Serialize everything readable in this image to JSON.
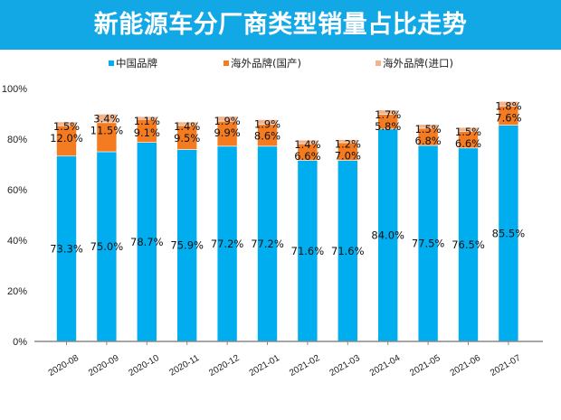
{
  "colors": {
    "banner": "#12a8e6",
    "china": "#00adef",
    "foreign_domestic": "#f47b20",
    "foreign_import": "#f2b48e",
    "axis": "#888888"
  },
  "chart_data": {
    "type": "bar",
    "stacked": true,
    "title": "新能源车分厂商类型销量占比走势",
    "xlabel": "",
    "ylabel": "",
    "ylim": [
      0,
      100
    ],
    "yticks": [
      "0%",
      "20%",
      "40%",
      "60%",
      "80%",
      "100%"
    ],
    "ytick_values": [
      0,
      20,
      40,
      60,
      80,
      100
    ],
    "legend_position": "top",
    "grid": false,
    "categories": [
      "2020-08",
      "2020-09",
      "2020-10",
      "2020-11",
      "2020-12",
      "2021-01",
      "2021-02",
      "2021-03",
      "2021-04",
      "2021-05",
      "2021-06",
      "2021-07"
    ],
    "series": [
      {
        "name": "中国品牌",
        "color_key": "china",
        "values": [
          73.3,
          75.0,
          78.7,
          75.9,
          77.2,
          77.2,
          71.6,
          71.6,
          84.0,
          77.5,
          76.5,
          85.5
        ],
        "labels": [
          "73.3%",
          "75.0%",
          "78.7%",
          "75.9%",
          "77.2%",
          "77.2%",
          "71.6%",
          "71.6%",
          "84.0%",
          "77.5%",
          "76.5%",
          "85.5%"
        ]
      },
      {
        "name": "海外品牌(国产)",
        "color_key": "foreign_domestic",
        "values": [
          12.0,
          11.5,
          9.1,
          9.5,
          9.9,
          8.6,
          6.6,
          7.0,
          5.8,
          6.8,
          6.6,
          7.6
        ],
        "labels": [
          "12.0%",
          "11.5%",
          "9.1%",
          "9.5%",
          "9.9%",
          "8.6%",
          "6.6%",
          "7.0%",
          "5.8%",
          "6.8%",
          "6.6%",
          "7.6%"
        ]
      },
      {
        "name": "海外品牌(进口)",
        "color_key": "foreign_import",
        "values": [
          1.5,
          3.4,
          1.1,
          1.4,
          1.9,
          1.9,
          1.4,
          1.2,
          1.7,
          1.5,
          1.5,
          1.8
        ],
        "labels": [
          "1.5%",
          "3.4%",
          "1.1%",
          "1.4%",
          "1.9%",
          "1.9%",
          "1.4%",
          "1.2%",
          "1.7%",
          "1.5%",
          "1.5%",
          "1.8%"
        ]
      }
    ]
  }
}
